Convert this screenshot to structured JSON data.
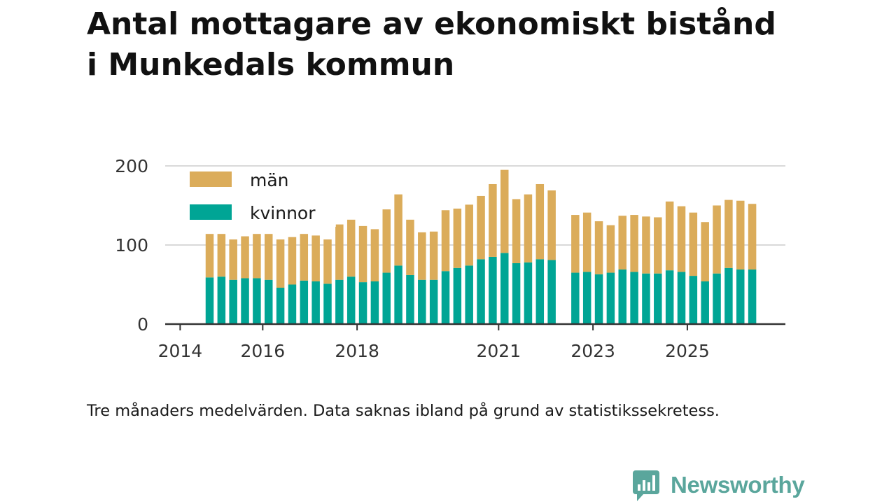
{
  "title_lines": [
    "Antal mottagare av ekonomiskt bistånd",
    "i Munkedals kommun"
  ],
  "note": "Tre månaders medelvärden. Data saknas ibland på grund av statistikssekretess.",
  "brand": "Newsworthy",
  "colors": {
    "man": "#dbac5a",
    "kvinnor": "#00a595",
    "grid": "#d9d9d9",
    "axis": "#333333",
    "brand": "#5aa69c"
  },
  "chart_data": {
    "type": "bar",
    "stacked": true,
    "title": "Antal mottagare av ekonomiskt bistånd i Munkedals kommun",
    "ylim": [
      0,
      200
    ],
    "yticks": [
      0,
      100,
      200
    ],
    "xticks": [
      "2014",
      "2016",
      "2018",
      "2021",
      "2023",
      "2025"
    ],
    "legend": {
      "position": "top-left",
      "entries": [
        "män",
        "kvinnor"
      ]
    },
    "categories": [
      "2014-Q3",
      "2014-Q4",
      "2015-Q1",
      "2015-Q2",
      "2015-Q3",
      "2015-Q4",
      "2016-Q1",
      "2016-Q2",
      "2016-Q3",
      "2016-Q4",
      "2017-Q1",
      "2017-Q2",
      "2017-Q3",
      "2017-Q4",
      "2018-Q1",
      "2018-Q2",
      "2018-Q3",
      "2018-Q4",
      "2019-Q1",
      "2019-Q2",
      "2019-Q3",
      "2019-Q4",
      "2020-Q1",
      "2020-Q2",
      "2020-Q3",
      "2020-Q4",
      "2021-Q1",
      "2021-Q2",
      "2021-Q3",
      "2021-Q4",
      "2022-Q1",
      "2022-Q2",
      "2022-Q3",
      "2022-Q4",
      "2023-Q1",
      "2023-Q2",
      "2023-Q3",
      "2023-Q4",
      "2024-Q1",
      "2024-Q2",
      "2024-Q3",
      "2024-Q4",
      "2025-Q1",
      "2025-Q2",
      "2025-Q3",
      "2025-Q4",
      "2026-Q1"
    ],
    "series": [
      {
        "name": "kvinnor",
        "values": [
          59,
          60,
          56,
          58,
          58,
          56,
          46,
          50,
          55,
          54,
          51,
          56,
          60,
          53,
          54,
          65,
          74,
          62,
          56,
          56,
          67,
          71,
          74,
          82,
          85,
          90,
          77,
          78,
          82,
          81,
          null,
          65,
          66,
          63,
          65,
          69,
          66,
          64,
          64,
          68,
          66,
          61,
          54,
          64,
          71,
          69,
          69
        ]
      },
      {
        "name": "män",
        "values": [
          55,
          54,
          51,
          53,
          56,
          58,
          61,
          60,
          59,
          58,
          56,
          70,
          72,
          71,
          66,
          80,
          90,
          70,
          60,
          61,
          77,
          75,
          77,
          80,
          92,
          105,
          81,
          86,
          95,
          88,
          null,
          73,
          75,
          67,
          60,
          68,
          72,
          72,
          71,
          87,
          83,
          80,
          75,
          86,
          86,
          87,
          83
        ]
      }
    ]
  }
}
